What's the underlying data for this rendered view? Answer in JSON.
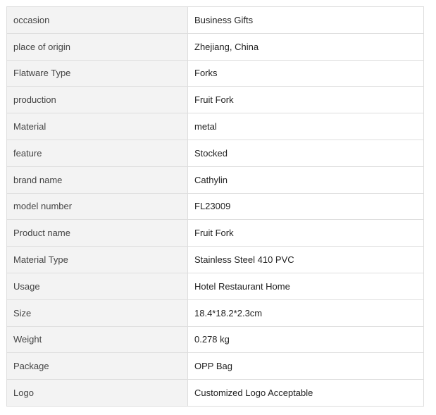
{
  "rows": [
    {
      "label": "occasion",
      "value": "Business Gifts"
    },
    {
      "label": "place of origin",
      "value": "Zhejiang, China"
    },
    {
      "label": "Flatware Type",
      "value": "Forks"
    },
    {
      "label": "production",
      "value": "Fruit Fork"
    },
    {
      "label": "Material",
      "value": "metal"
    },
    {
      "label": "feature",
      "value": "Stocked"
    },
    {
      "label": "brand name",
      "value": "Cathylin"
    },
    {
      "label": "model number",
      "value": "FL23009"
    },
    {
      "label": "Product name",
      "value": "Fruit Fork"
    },
    {
      "label": "Material Type",
      "value": "Stainless Steel 410 PVC"
    },
    {
      "label": "Usage",
      "value": "Hotel Restaurant Home"
    },
    {
      "label": "Size",
      "value": "18.4*18.2*2.3cm"
    },
    {
      "label": "Weight",
      "value": "0.278 kg"
    },
    {
      "label": "Package",
      "value": "OPP Bag"
    },
    {
      "label": "Logo",
      "value": "Customized Logo Acceptable"
    }
  ]
}
